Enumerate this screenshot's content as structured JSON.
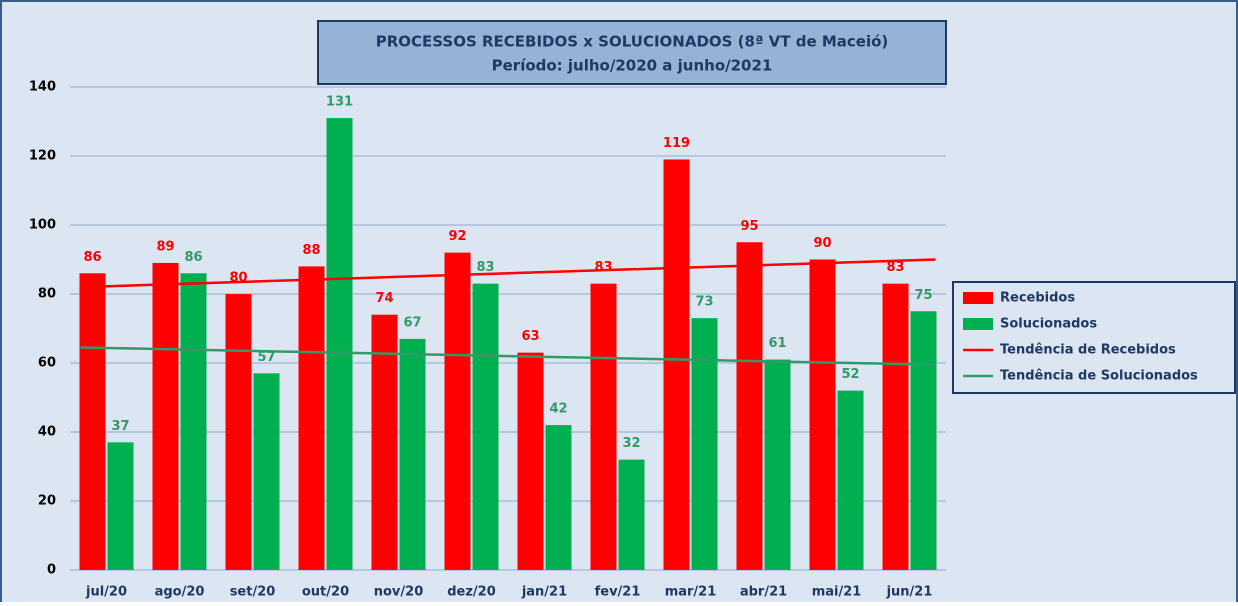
{
  "chart_data": {
    "type": "bar",
    "title": [
      "PROCESSOS RECEBIDOS x SOLUCIONADOS (8ª VT de Maceió)",
      "Período: julho/2020 a junho/2021"
    ],
    "categories": [
      "jul/20",
      "ago/20",
      "set/20",
      "out/20",
      "nov/20",
      "dez/20",
      "jan/21",
      "fev/21",
      "mar/21",
      "abr/21",
      "mai/21",
      "jun/21"
    ],
    "series": [
      {
        "name": "Recebidos",
        "color": "#ff0000",
        "values": [
          86,
          89,
          80,
          88,
          74,
          92,
          63,
          83,
          119,
          95,
          90,
          83
        ]
      },
      {
        "name": "Solucionados",
        "color": "#00b050",
        "values": [
          37,
          86,
          57,
          131,
          67,
          83,
          42,
          32,
          73,
          61,
          52,
          75
        ]
      }
    ],
    "trend_lines": [
      {
        "name": "Tendência de Recebidos",
        "color": "#ff0000",
        "start": 82,
        "end": 90
      },
      {
        "name": "Tendência de Solucionados",
        "color": "#339966",
        "start": 64.5,
        "end": 59.5
      }
    ],
    "ylim": [
      0,
      140
    ],
    "yticks": [
      0,
      20,
      40,
      60,
      80,
      100,
      120,
      140
    ],
    "grid": true,
    "legend": "right"
  }
}
